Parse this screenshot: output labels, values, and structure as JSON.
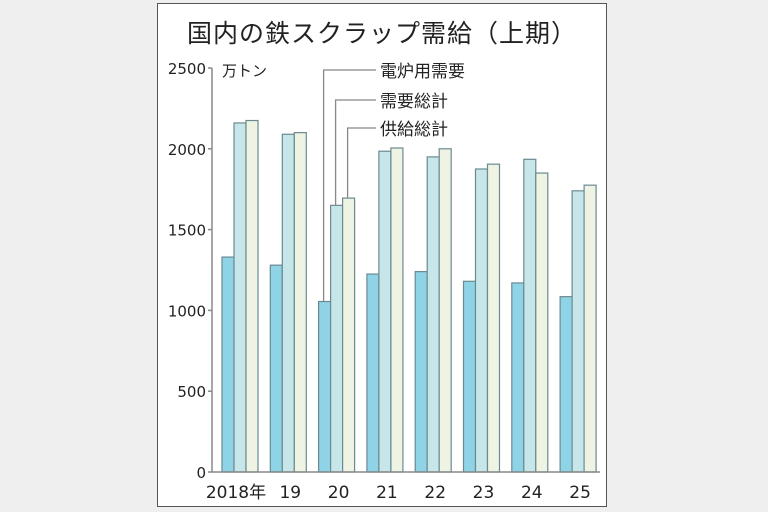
{
  "title": "国内の鉄スクラップ需給（上期）",
  "unit": "万トン",
  "colors": {
    "eaf_demand": "#8fd3e6",
    "total_demand": "#c6e6ea",
    "total_supply": "#eef3e4",
    "bar_border": "#6b8a90",
    "axis": "#888888",
    "frame": "#555555",
    "page_bg": "#efefef"
  },
  "chart_data": {
    "type": "bar",
    "title": "国内の鉄スクラップ需給（上期）",
    "xlabel": "",
    "ylabel": "万トン",
    "ylim": [
      0,
      2500
    ],
    "yticks": [
      0,
      500,
      1000,
      1500,
      2000,
      2500
    ],
    "grid": false,
    "legend_position": "top (leader-line labels pointing at 2020 bars)",
    "categories": [
      "2018年",
      "19",
      "20",
      "21",
      "22",
      "23",
      "24",
      "25"
    ],
    "series": [
      {
        "name": "電炉用需要",
        "key": "eaf_demand",
        "values": [
          1330,
          1280,
          1055,
          1225,
          1240,
          1180,
          1170,
          1085
        ]
      },
      {
        "name": "需要総計",
        "key": "total_demand",
        "values": [
          2160,
          2090,
          1650,
          1985,
          1950,
          1875,
          1935,
          1740
        ]
      },
      {
        "name": "供給総計",
        "key": "total_supply",
        "values": [
          2175,
          2100,
          1695,
          2005,
          2000,
          1905,
          1850,
          1775
        ]
      }
    ]
  }
}
